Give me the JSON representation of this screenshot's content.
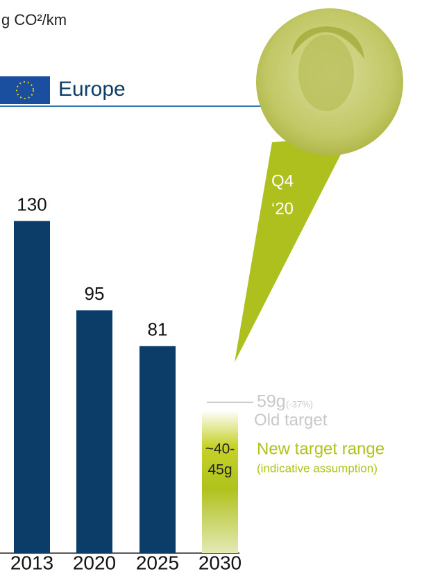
{
  "chart_data": {
    "type": "bar",
    "unit": "g CO²/km",
    "region": "Europe",
    "categories": [
      "2013",
      "2020",
      "2025",
      "2030"
    ],
    "values": [
      130,
      95,
      81,
      null
    ],
    "color": "#0c3d69",
    "ylim": [
      0,
      135
    ],
    "old_target": {
      "value": 59,
      "label": "59g",
      "change": "(-37%)",
      "name": "Old target",
      "color": "#c8c8c8"
    },
    "target_range": {
      "values": [
        40,
        45
      ],
      "label_lines": [
        "~40-",
        "45g"
      ],
      "name": "New target range",
      "note": "(indicative assumption)",
      "color": "#b0c21c"
    },
    "callout": [
      "Q4",
      "‘20"
    ]
  }
}
